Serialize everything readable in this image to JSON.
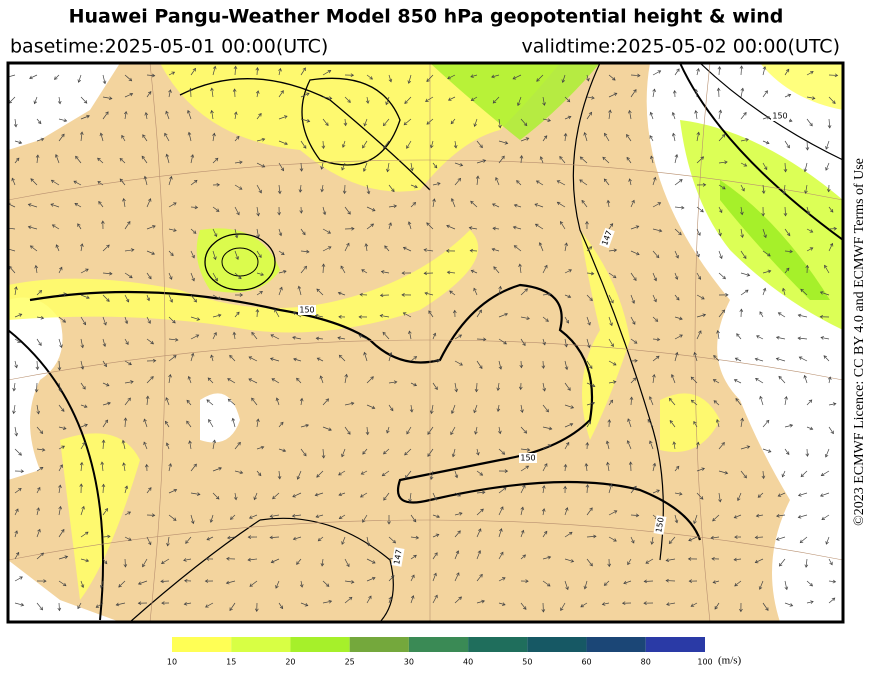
{
  "header": {
    "title": "Huawei Pangu-Weather Model 850 hPa geopotential height & wind",
    "basetime": "basetime:2025-05-01 00:00(UTC)",
    "validtime": "validtime:2025-05-02 00:00(UTC)"
  },
  "licence": "©2023 ECMWF Licence: CC BY 4.0 and ECMWF Terms of Use",
  "contour_labels": [
    "150",
    "147",
    "150",
    "150",
    "150",
    "147"
  ],
  "colorbar": {
    "ticks": [
      10,
      15,
      20,
      25,
      30,
      40,
      50,
      60,
      80,
      100
    ],
    "colors": [
      "#ffff55",
      "#d8ff44",
      "#a6f02a",
      "#74a83c",
      "#3a8a55",
      "#1f6e5c",
      "#165864",
      "#1b4676",
      "#2a3aa6"
    ],
    "unit": "(m/s)"
  }
}
